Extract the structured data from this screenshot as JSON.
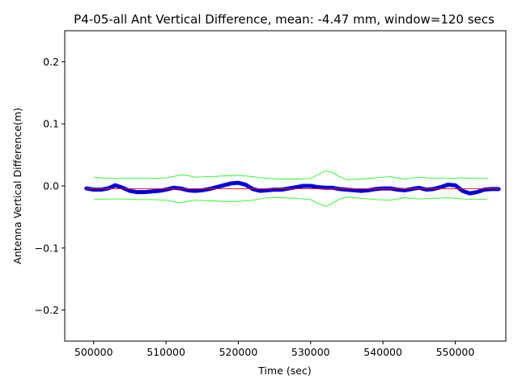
{
  "chart_data": {
    "type": "line",
    "title": "P4-05-all Ant Vertical Difference, mean: -4.47 mm, window=120 secs",
    "xlabel": "Time (sec)",
    "ylabel": "Antenna Vertical Difference(m)",
    "xlim": [
      496000,
      557000
    ],
    "ylim": [
      -0.25,
      0.25
    ],
    "xticks": [
      500000,
      510000,
      520000,
      530000,
      540000,
      550000
    ],
    "xtick_labels": [
      "500000",
      "510000",
      "520000",
      "530000",
      "540000",
      "550000"
    ],
    "yticks": [
      0.2,
      0.1,
      0.0,
      -0.1,
      -0.2
    ],
    "ytick_labels": [
      "0.2",
      "0.1",
      "0.0",
      "−0.1",
      "−0.2"
    ],
    "grid": false,
    "series": [
      {
        "role": "raw",
        "color": "#0000ff",
        "x": [
          499000,
          500000,
          501000,
          502000,
          503000,
          504000,
          505000,
          506000,
          507000,
          508000,
          509000,
          510000,
          511000,
          512000,
          513000,
          514000,
          515000,
          516000,
          517000,
          518000,
          519000,
          520000,
          521000,
          522000,
          523000,
          524000,
          525000,
          526000,
          527000,
          528000,
          529000,
          530000,
          531000,
          532000,
          533000,
          534000,
          535000,
          536000,
          537000,
          538000,
          539000,
          540000,
          541000,
          542000,
          543000,
          544000,
          545000,
          546000,
          547000,
          548000,
          549000,
          550000,
          551000,
          552000,
          553000,
          554000,
          555000,
          556000
        ],
        "values": [
          -0.004,
          -0.006,
          -0.006,
          -0.004,
          0.001,
          -0.003,
          -0.008,
          -0.01,
          -0.01,
          -0.009,
          -0.008,
          -0.006,
          -0.003,
          -0.004,
          -0.007,
          -0.008,
          -0.007,
          -0.005,
          -0.002,
          0.001,
          0.004,
          0.005,
          0.002,
          -0.005,
          -0.008,
          -0.007,
          -0.006,
          -0.006,
          -0.004,
          -0.002,
          0.0,
          0.0,
          -0.002,
          -0.003,
          -0.003,
          -0.005,
          -0.006,
          -0.007,
          -0.008,
          -0.007,
          -0.005,
          -0.004,
          -0.004,
          -0.006,
          -0.007,
          -0.005,
          -0.003,
          -0.006,
          -0.005,
          -0.002,
          0.002,
          0.001,
          -0.008,
          -0.012,
          -0.01,
          -0.006,
          -0.005,
          -0.005
        ]
      },
      {
        "role": "mean",
        "color": "#ff0000",
        "x": [
          499000,
          556000
        ],
        "values": [
          -0.00447,
          -0.00447
        ]
      },
      {
        "role": "upper-envelope",
        "color": "#00ff00",
        "x": [
          500000,
          502000,
          504000,
          506000,
          508000,
          510000,
          511000,
          512000,
          513000,
          514000,
          516000,
          518000,
          520000,
          522000,
          524000,
          526000,
          528000,
          530000,
          531000,
          532000,
          533000,
          534000,
          535000,
          537000,
          539000,
          541000,
          543000,
          545000,
          547000,
          549000,
          551000,
          553000,
          554500
        ],
        "values": [
          0.014,
          0.012,
          0.012,
          0.012,
          0.012,
          0.013,
          0.015,
          0.018,
          0.017,
          0.014,
          0.015,
          0.016,
          0.017,
          0.015,
          0.012,
          0.011,
          0.011,
          0.012,
          0.018,
          0.024,
          0.022,
          0.015,
          0.01,
          0.011,
          0.013,
          0.015,
          0.011,
          0.014,
          0.012,
          0.012,
          0.013,
          0.012,
          0.012
        ]
      },
      {
        "role": "lower-envelope",
        "color": "#00ff00",
        "x": [
          500000,
          502000,
          504000,
          506000,
          508000,
          510000,
          511000,
          512000,
          513000,
          514000,
          516000,
          518000,
          520000,
          522000,
          524000,
          526000,
          528000,
          530000,
          531000,
          532000,
          533000,
          534000,
          535000,
          537000,
          539000,
          541000,
          543000,
          545000,
          547000,
          549000,
          551000,
          553000,
          554500
        ],
        "values": [
          -0.022,
          -0.021,
          -0.021,
          -0.022,
          -0.022,
          -0.023,
          -0.025,
          -0.027,
          -0.025,
          -0.023,
          -0.024,
          -0.025,
          -0.025,
          -0.023,
          -0.019,
          -0.019,
          -0.02,
          -0.022,
          -0.028,
          -0.033,
          -0.028,
          -0.021,
          -0.018,
          -0.02,
          -0.022,
          -0.023,
          -0.019,
          -0.021,
          -0.02,
          -0.019,
          -0.021,
          -0.022,
          -0.021
        ]
      }
    ]
  }
}
